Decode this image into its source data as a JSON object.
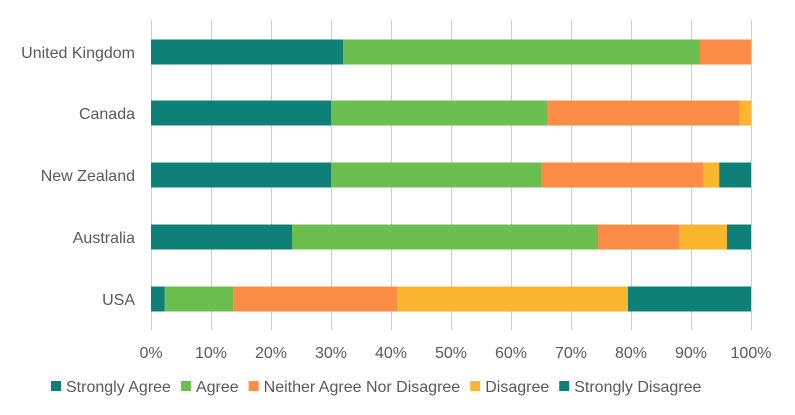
{
  "chart_data": {
    "type": "bar",
    "orientation": "horizontal",
    "stacked": "100%",
    "categories": [
      "United Kingdom",
      "Canada",
      "New Zealand",
      "Australia",
      "USA"
    ],
    "series": [
      {
        "name": "Strongly Agree",
        "color": "#0f8078",
        "values": [
          32,
          30,
          30,
          23.5,
          2.3
        ]
      },
      {
        "name": "Agree",
        "color": "#6bbf4e",
        "values": [
          59.5,
          36,
          35,
          51,
          11.5
        ]
      },
      {
        "name": "Neither Agree Nor Disagree",
        "color": "#fb8c45",
        "values": [
          8.5,
          32,
          27,
          13.5,
          27.2
        ]
      },
      {
        "name": "Disagree",
        "color": "#fbb52f",
        "values": [
          0,
          2,
          2.7,
          8,
          38.5
        ]
      },
      {
        "name": "Strongly Disagree",
        "color": "#0f8078",
        "values": [
          0,
          0,
          5.3,
          4,
          20.5
        ]
      }
    ],
    "x_ticks": [
      "0%",
      "10%",
      "20%",
      "30%",
      "40%",
      "50%",
      "60%",
      "70%",
      "80%",
      "90%",
      "100%"
    ],
    "xlim": [
      0,
      100
    ],
    "grid": "vertical",
    "legend_position": "bottom"
  }
}
